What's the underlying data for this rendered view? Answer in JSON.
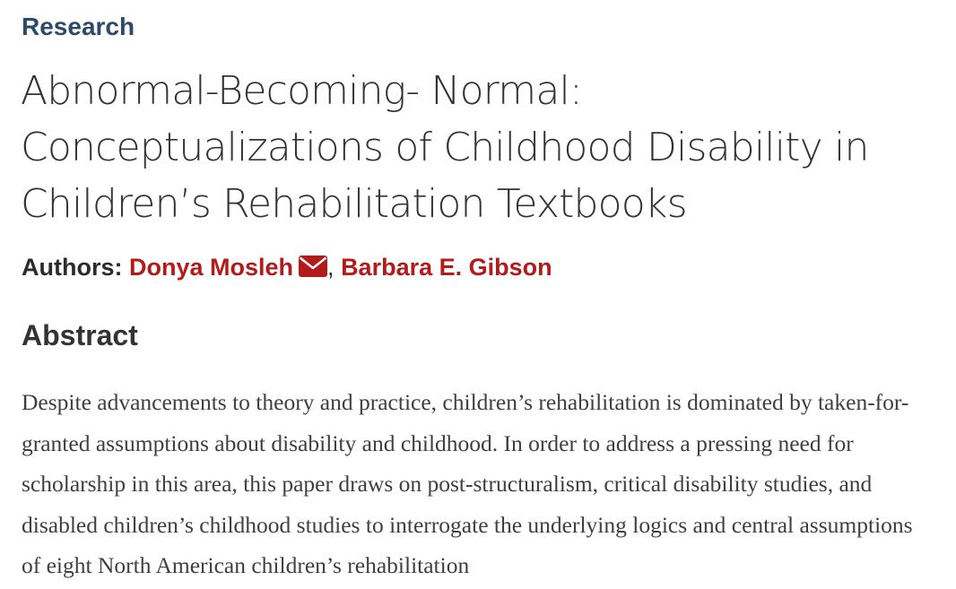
{
  "section_label": "Research",
  "title": "Abnormal-Becoming- Normal: Conceptualizations of Childhood Disability in Children’s Rehabilitation Textbooks",
  "authors": {
    "label": "Authors:",
    "list": [
      {
        "name": "Donya Mosleh",
        "has_email_icon": true,
        "icon": "envelope-icon"
      },
      {
        "name": "Barbara E. Gibson",
        "has_email_icon": false
      }
    ],
    "separator": ","
  },
  "abstract": {
    "heading": "Abstract",
    "text": "Despite advancements to theory and practice, children’s rehabilitation is dominated by taken-for-granted assumptions about disability and childhood. In order to address a pressing need for scholarship in this area, this paper draws on post-structuralism, critical disability studies, and disabled children’s childhood studies to interrogate the underlying logics and central assumptions of eight North American children’s rehabilitation"
  },
  "colors": {
    "section_label": "#2e4a6b",
    "link": "#b31b1b",
    "text": "#333333"
  }
}
